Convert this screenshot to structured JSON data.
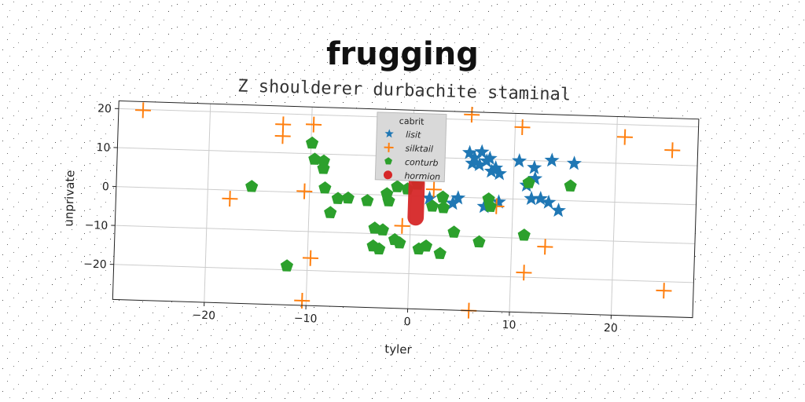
{
  "chart_data": {
    "type": "scatter",
    "title": "frugging",
    "subtitle": "Z shoulderer durbachite staminal",
    "xlabel": "tyler",
    "ylabel": "unprivate",
    "xlim": [
      -29,
      28
    ],
    "ylim": [
      -29,
      22
    ],
    "xticks": [
      -20,
      -10,
      0,
      10,
      20
    ],
    "yticks": [
      -20,
      -10,
      0,
      10,
      20
    ],
    "xtick_labels": [
      "−20",
      "−10",
      "0",
      "10",
      "20"
    ],
    "ytick_labels": [
      "−20",
      "−10",
      "0",
      "10",
      "20"
    ],
    "grid": true,
    "legend": {
      "title": "cabrit",
      "placement": "top-center"
    },
    "series": [
      {
        "name": "lisit",
        "marker": "star",
        "color": "#1f77b4",
        "points": [
          [
            5.6,
            11.5
          ],
          [
            6.1,
            10.2
          ],
          [
            6.8,
            11.8
          ],
          [
            5.9,
            8.8
          ],
          [
            6.6,
            8.5
          ],
          [
            7.3,
            9.5
          ],
          [
            7.6,
            10.2
          ],
          [
            8.2,
            7.8
          ],
          [
            8.6,
            6.4
          ],
          [
            7.8,
            6.9
          ],
          [
            10.5,
            9.8
          ],
          [
            12.0,
            8.2
          ],
          [
            13.7,
            10.2
          ],
          [
            15.9,
            9.6
          ],
          [
            11.3,
            3.6
          ],
          [
            12.1,
            5.4
          ],
          [
            11.8,
            0.2
          ],
          [
            12.7,
            0.3
          ],
          [
            13.5,
            -0.6
          ],
          [
            14.5,
            -2.6
          ],
          [
            4.6,
            -0.2
          ],
          [
            4.1,
            -1.6
          ],
          [
            7.2,
            -2.2
          ],
          [
            8.6,
            -0.9
          ],
          [
            1.8,
            -0.5
          ]
        ]
      },
      {
        "name": "silktail",
        "marker": "plus",
        "color": "#ff7f0e",
        "points": [
          [
            -26.6,
            19.8
          ],
          [
            -12.8,
            17.3
          ],
          [
            -12.8,
            14.3
          ],
          [
            -9.8,
            17.5
          ],
          [
            -17.8,
            -2.2
          ],
          [
            -10.5,
            0.3
          ],
          [
            -0.8,
            -7.8
          ],
          [
            2.2,
            1.8
          ],
          [
            5.7,
            21.3
          ],
          [
            10.7,
            18.5
          ],
          [
            8.4,
            -2.0
          ],
          [
            20.8,
            16.8
          ],
          [
            25.5,
            13.8
          ],
          [
            -9.7,
            -16.8
          ],
          [
            11.3,
            -18.8
          ],
          [
            13.3,
            -12.0
          ],
          [
            25.1,
            -22.3
          ],
          [
            -10.4,
            -27.8
          ],
          [
            6.0,
            -29.0
          ]
        ]
      },
      {
        "name": "conturb",
        "marker": "pentagon",
        "color": "#2ca02c",
        "points": [
          [
            -9.9,
            12.7
          ],
          [
            -9.6,
            8.6
          ],
          [
            -8.7,
            8.2
          ],
          [
            -8.7,
            6.3
          ],
          [
            -8.5,
            1.3
          ],
          [
            -7.2,
            -1.3
          ],
          [
            -6.2,
            -1.1
          ],
          [
            -4.3,
            -1.6
          ],
          [
            -2.4,
            0.3
          ],
          [
            -2.2,
            -1.5
          ],
          [
            -1.4,
            2.2
          ],
          [
            -0.4,
            1.7
          ],
          [
            0.6,
            3.0
          ],
          [
            -3.5,
            -8.6
          ],
          [
            -2.7,
            -9.0
          ],
          [
            -3.6,
            -13.2
          ],
          [
            -3.0,
            -13.9
          ],
          [
            -1.5,
            -11.4
          ],
          [
            -1.0,
            -12.2
          ],
          [
            1.6,
            -12.8
          ],
          [
            0.9,
            -13.6
          ],
          [
            3.0,
            -14.6
          ],
          [
            2.1,
            -2.5
          ],
          [
            3.2,
            -2.8
          ],
          [
            3.1,
            -0.1
          ],
          [
            6.8,
            -11.3
          ],
          [
            7.8,
            -2.1
          ],
          [
            7.6,
            -0.2
          ],
          [
            11.2,
            -9.2
          ],
          [
            11.5,
            4.3
          ],
          [
            15.6,
            3.8
          ],
          [
            -15.7,
            1.1
          ],
          [
            -12.0,
            -19.0
          ],
          [
            -7.9,
            -5.0
          ],
          [
            4.3,
            -9.0
          ]
        ]
      },
      {
        "name": "hormion",
        "marker": "violin",
        "color": "#d62728",
        "center": [
          0.5,
          -0.8
        ],
        "extent_y": [
          -7.6,
          5.4
        ],
        "half_width": 0.8
      }
    ]
  }
}
